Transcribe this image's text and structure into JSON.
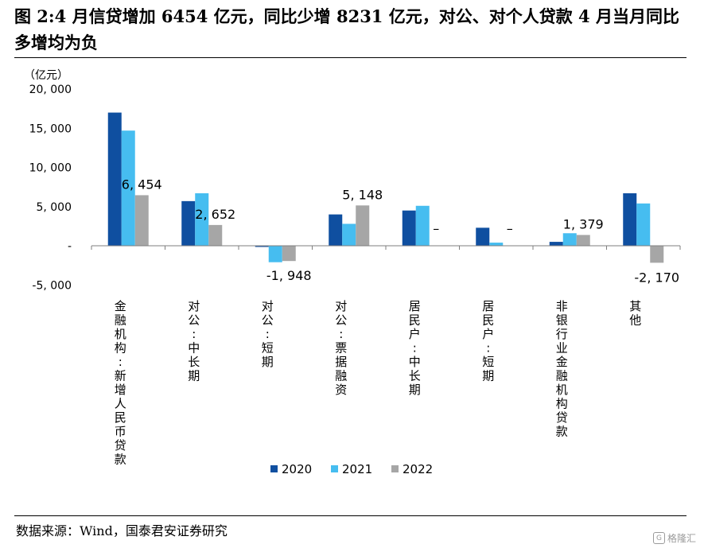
{
  "title": "图 2:4 月信贷增加 6454 亿元，同比少增 8231 亿元，对公、对个人贷款 4 月当月同比多增均为负",
  "source": "数据来源：Wind，国泰君安证券研究",
  "watermark": "格隆汇",
  "watermark_icon": "G",
  "chart_data": {
    "type": "bar",
    "unit_label": "（亿元）",
    "categories": [
      "金融机构:新增人民币贷款",
      "对公:中长期",
      "对公:短期",
      "对公:票据融资",
      "居民户:中长期",
      "居民户:短期",
      "非银行业金融机构贷款",
      "其他"
    ],
    "series": [
      {
        "name": "2020",
        "color": "#0f4fa0",
        "values": [
          17000,
          5700,
          -150,
          4000,
          4500,
          2300,
          500,
          6700
        ]
      },
      {
        "name": "2021",
        "color": "#46bdf0",
        "values": [
          14700,
          6700,
          -2100,
          2800,
          5100,
          400,
          1600,
          5400
        ]
      },
      {
        "name": "2022",
        "color": "#a6a6a6",
        "values": [
          6454,
          2652,
          -1948,
          5148,
          0,
          0,
          1379,
          -2170
        ]
      }
    ],
    "data_labels": [
      "6, 454",
      "2, 652",
      "-1, 948",
      "5, 148",
      "–",
      "–",
      "1, 379",
      "-2, 170"
    ],
    "yticks": [
      20000,
      15000,
      10000,
      5000,
      0,
      -5000
    ],
    "ytick_labels": [
      "20, 000",
      "15, 000",
      "10, 000",
      "5, 000",
      "-",
      "-5, 000"
    ],
    "ylim": [
      -5000,
      20000
    ],
    "legend_position": "bottom"
  }
}
